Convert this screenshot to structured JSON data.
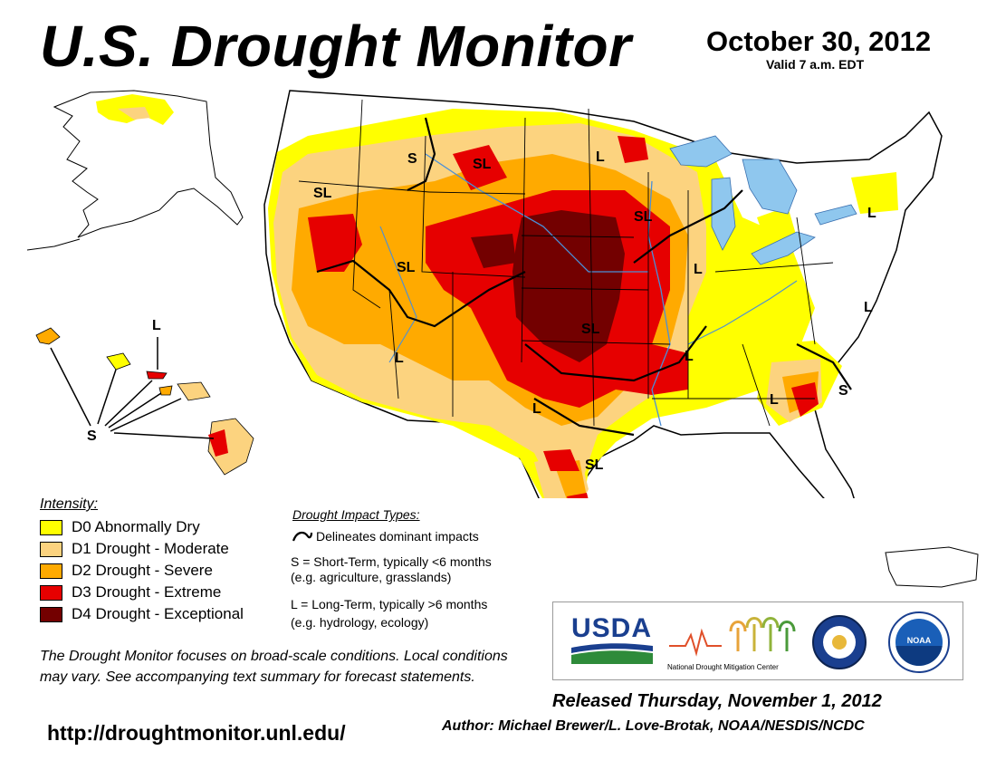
{
  "header": {
    "title": "U.S. Drought Monitor",
    "date": "October 30, 2012",
    "valid": "Valid 7 a.m. EDT"
  },
  "legend": {
    "title": "Intensity:",
    "items": [
      {
        "label": "D0 Abnormally Dry",
        "color": "#ffff00"
      },
      {
        "label": "D1 Drought - Moderate",
        "color": "#fcd37f"
      },
      {
        "label": "D2 Drought - Severe",
        "color": "#ffaa00"
      },
      {
        "label": "D3 Drought - Extreme",
        "color": "#e60000"
      },
      {
        "label": "D4 Drought - Exceptional",
        "color": "#730000"
      }
    ]
  },
  "impacts": {
    "title": "Drought Impact Types:",
    "delineates": "Delineates dominant impacts",
    "short_term": "S = Short-Term, typically <6 months",
    "short_term_eg": "(e.g. agriculture, grasslands)",
    "long_term": "L = Long-Term, typically >6 months",
    "long_term_eg": "(e.g. hydrology, ecology)"
  },
  "map_labels": {
    "sl": "SL",
    "s": "S",
    "l": "L"
  },
  "disclaimer": "The Drought Monitor focuses on broad-scale conditions. Local conditions may vary. See accompanying text summary for forecast statements.",
  "url": "http://droughtmonitor.unl.edu/",
  "released": "Released Thursday, November 1, 2012",
  "author": "Author: Michael Brewer/L. Love-Brotak, NOAA/NESDIS/NCDC",
  "logos": {
    "usda": "USDA",
    "ndmc": "National Drought Mitigation Center",
    "noaa": "NOAA"
  },
  "colors": {
    "water": "#8fc7ee",
    "lines": "#000000",
    "rivers": "#4a8fd8",
    "usda_blue": "#1a3f8f",
    "usda_green": "#2e8b3a"
  }
}
